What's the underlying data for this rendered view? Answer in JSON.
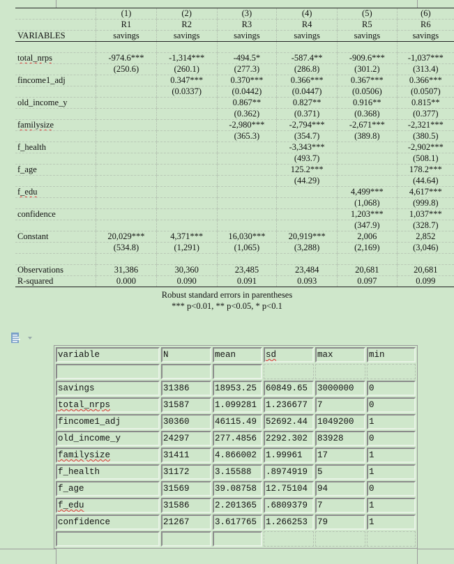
{
  "regression": {
    "variables_label": "VARIABLES",
    "columns": [
      {
        "num": "(1)",
        "model": "R1",
        "dep": "savings"
      },
      {
        "num": "(2)",
        "model": "R2",
        "dep": "savings"
      },
      {
        "num": "(3)",
        "model": "R3",
        "dep": "savings"
      },
      {
        "num": "(4)",
        "model": "R4",
        "dep": "savings"
      },
      {
        "num": "(5)",
        "model": "R5",
        "dep": "savings"
      },
      {
        "num": "(6)",
        "model": "R6",
        "dep": "savings"
      }
    ],
    "rows": [
      {
        "name": "total_nrps",
        "coef": [
          "-974.6***",
          "-1,314***",
          "-494.5*",
          "-587.4**",
          "-909.6***",
          "-1,037***"
        ],
        "se": [
          "(250.6)",
          "(260.1)",
          "(277.3)",
          "(286.8)",
          "(301.2)",
          "(313.4)"
        ]
      },
      {
        "name": "fincome1_adj",
        "coef": [
          "",
          "0.347***",
          "0.370***",
          "0.366***",
          "0.367***",
          "0.366***"
        ],
        "se": [
          "",
          "(0.0337)",
          "(0.0442)",
          "(0.0447)",
          "(0.0506)",
          "(0.0507)"
        ]
      },
      {
        "name": "old_income_y",
        "coef": [
          "",
          "",
          "0.867**",
          "0.827**",
          "0.916**",
          "0.815**"
        ],
        "se": [
          "",
          "",
          "(0.362)",
          "(0.371)",
          "(0.368)",
          "(0.377)"
        ]
      },
      {
        "name": "familysize",
        "coef": [
          "",
          "",
          "-2,980***",
          "-2,794***",
          "-2,671***",
          "-2,321***"
        ],
        "se": [
          "",
          "",
          "(365.3)",
          "(354.7)",
          "(389.8)",
          "(380.5)"
        ]
      },
      {
        "name": "f_health",
        "coef": [
          "",
          "",
          "",
          "-3,343***",
          "",
          "-2,902***"
        ],
        "se": [
          "",
          "",
          "",
          "(493.7)",
          "",
          "(508.1)"
        ]
      },
      {
        "name": "f_age",
        "coef": [
          "",
          "",
          "",
          "125.2***",
          "",
          "178.2***"
        ],
        "se": [
          "",
          "",
          "",
          "(44.29)",
          "",
          "(44.64)"
        ]
      },
      {
        "name": "f_edu",
        "coef": [
          "",
          "",
          "",
          "",
          "4,499***",
          "4,617***"
        ],
        "se": [
          "",
          "",
          "",
          "",
          "(1,068)",
          "(999.8)"
        ]
      },
      {
        "name": "confidence",
        "coef": [
          "",
          "",
          "",
          "",
          "1,203***",
          "1,037***"
        ],
        "se": [
          "",
          "",
          "",
          "",
          "(347.9)",
          "(328.7)"
        ]
      },
      {
        "name": "Constant",
        "coef": [
          "20,029***",
          "4,371***",
          "16,030***",
          "20,919***",
          "2,006",
          "2,852"
        ],
        "se": [
          "(534.8)",
          "(1,291)",
          "(1,065)",
          "(3,288)",
          "(2,169)",
          "(3,046)"
        ]
      }
    ],
    "observations": {
      "label": "Observations",
      "values": [
        "31,386",
        "30,360",
        "23,485",
        "23,484",
        "20,681",
        "20,681"
      ]
    },
    "r_squared": {
      "label": "R-squared",
      "values": [
        "0.000",
        "0.090",
        "0.091",
        "0.093",
        "0.097",
        "0.099"
      ]
    },
    "notes": [
      "Robust standard errors in parentheses",
      "*** p<0.01, ** p<0.05, * p<0.1"
    ]
  },
  "paste_options": {
    "icon": "paste-options-icon"
  },
  "summary": {
    "headers": [
      "variable",
      "N",
      "mean",
      "sd",
      "max",
      "min"
    ],
    "rows": [
      [
        "savings",
        "31386",
        "18953.25",
        "60849.65",
        "3000000",
        "0"
      ],
      [
        "total_nrps",
        "31587",
        "1.099281",
        "1.236677",
        "7",
        "0"
      ],
      [
        "fincome1_adj",
        "30360",
        "46115.49",
        "52692.44",
        "1049200",
        "1"
      ],
      [
        "old_income_y",
        "24297",
        "277.4856",
        "2292.302",
        "83928",
        "0"
      ],
      [
        "familysize",
        "31411",
        "4.866002",
        "1.99961",
        "17",
        "1"
      ],
      [
        "f_health",
        "31172",
        "3.15588",
        ".8974919",
        "5",
        "1"
      ],
      [
        "f_age",
        "31569",
        "39.08758",
        "12.75104",
        "94",
        "0"
      ],
      [
        "f_edu",
        "31586",
        "2.201365",
        ".6809379",
        "7",
        "1"
      ],
      [
        "confidence",
        "21267",
        "3.617765",
        "1.266253",
        "79",
        "1"
      ]
    ]
  }
}
